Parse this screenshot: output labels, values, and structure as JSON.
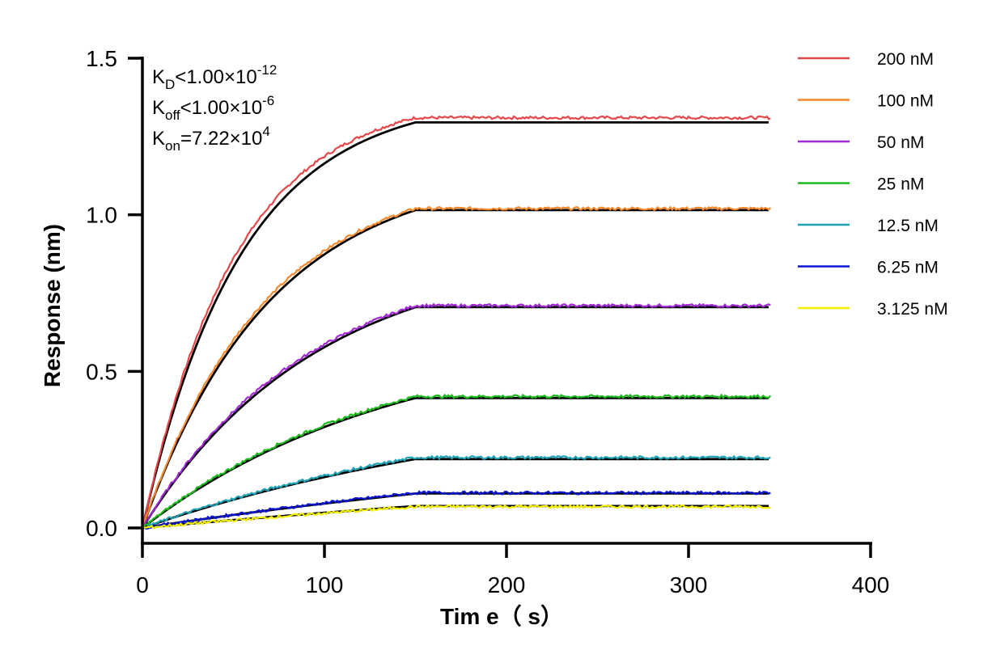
{
  "chart_data": {
    "type": "line",
    "title": "",
    "xlabel": "Tim e（ s）",
    "ylabel": "Response (nm)",
    "xlim": [
      0,
      400
    ],
    "ylim": [
      0,
      1.5
    ],
    "xticks": [
      "0",
      "100",
      "200",
      "300",
      "400"
    ],
    "yticks": [
      "0.0",
      "0.5",
      "1.0",
      "1.5"
    ],
    "grid": false,
    "legend_position": "right",
    "association_end": 150,
    "dissociation_end": 345,
    "fit_color": "#000000",
    "parameters": [
      {
        "symbol": "K",
        "sub": "D",
        "rel": "<",
        "mantissa": "1.00×10",
        "exp": "-12"
      },
      {
        "symbol": "K",
        "sub": "off",
        "rel": "<",
        "mantissa": "1.00×10",
        "exp": "-6"
      },
      {
        "symbol": "K",
        "sub": "on",
        "rel": "=",
        "mantissa": "7.22×10",
        "exp": "4"
      }
    ],
    "series": [
      {
        "name": "200 nM",
        "color": "#e8474a",
        "plateau": 1.31,
        "fit_plateau": 1.295
      },
      {
        "name": "100 nM",
        "color": "#f5882b",
        "plateau": 1.02,
        "fit_plateau": 1.015
      },
      {
        "name": "50 nM",
        "color": "#a128d4",
        "plateau": 0.71,
        "fit_plateau": 0.705
      },
      {
        "name": "25 nM",
        "color": "#1cba1c",
        "plateau": 0.42,
        "fit_plateau": 0.415
      },
      {
        "name": "12.5 nM",
        "color": "#1ea3b6",
        "plateau": 0.225,
        "fit_plateau": 0.22
      },
      {
        "name": "6.25 nM",
        "color": "#0b16d6",
        "plateau": 0.112,
        "fit_plateau": 0.11
      },
      {
        "name": "3.125 nM",
        "color": "#f2f000",
        "plateau": 0.068,
        "fit_plateau": 0.07
      }
    ]
  }
}
